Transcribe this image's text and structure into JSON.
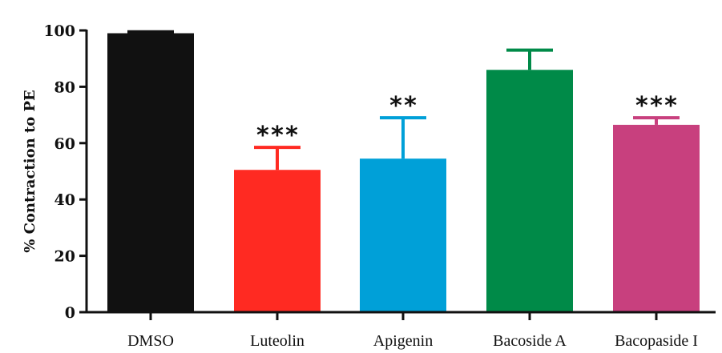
{
  "chart_data": {
    "type": "bar",
    "categories": [
      "DMSO",
      "Luteolin",
      "Apigenin",
      "Bacoside A",
      "Bacopaside I"
    ],
    "values": [
      99,
      50.5,
      54.5,
      86,
      66.5
    ],
    "errors": [
      0.5,
      8,
      14.5,
      7,
      2.5
    ],
    "colors": [
      "#111111",
      "#ff2a22",
      "#00a0d8",
      "#008a48",
      "#c8407e"
    ],
    "annotations": [
      "",
      "***",
      "**",
      "",
      "***"
    ],
    "ylabel": "% Contraction to PE",
    "xlabel": "",
    "ylim": [
      0,
      100
    ],
    "yticks": [
      0,
      20,
      40,
      60,
      80,
      100
    ],
    "grid": false,
    "legend": "none"
  }
}
